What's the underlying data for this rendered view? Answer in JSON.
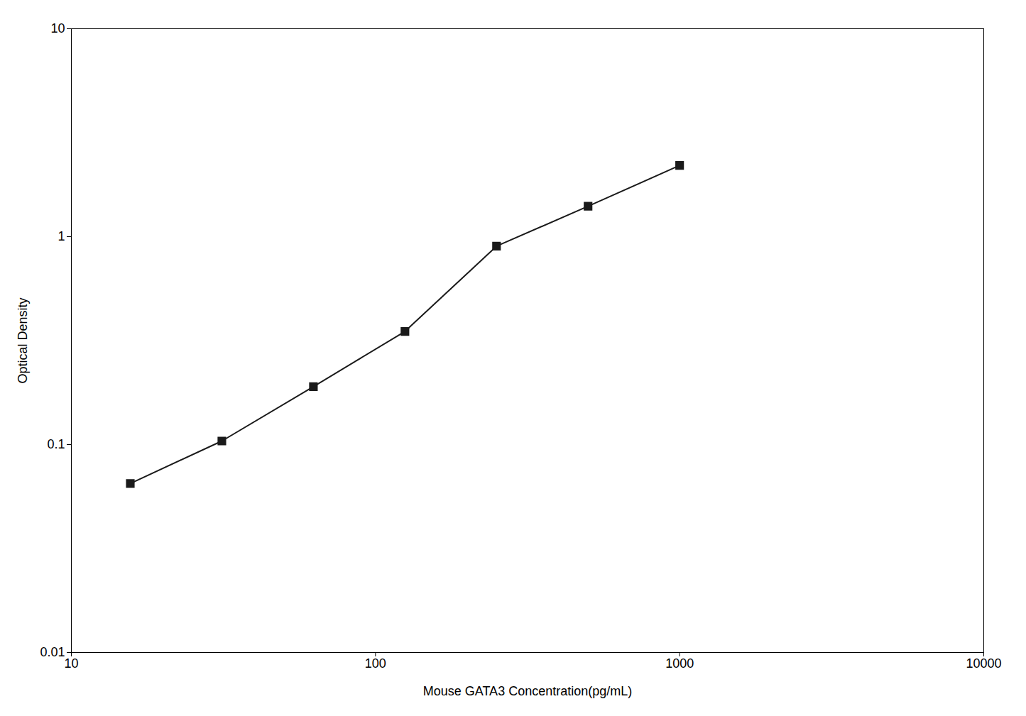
{
  "chart_data": {
    "type": "line",
    "x": [
      15.625,
      31.25,
      62.5,
      125,
      250,
      500,
      1000
    ],
    "values": [
      0.065,
      0.104,
      0.19,
      0.35,
      0.9,
      1.4,
      2.2
    ],
    "xlabel": "Mouse GATA3 Concentration(pg/mL)",
    "ylabel": "Optical Density",
    "xlim": [
      10,
      10000
    ],
    "ylim": [
      0.01,
      10
    ],
    "xticks": [
      10,
      100,
      1000,
      10000
    ],
    "yticks": [
      0.01,
      0.1,
      1,
      10
    ],
    "log": true,
    "grid": false,
    "color": "#1a1a1a",
    "marker": "square",
    "line_style": "solid"
  }
}
